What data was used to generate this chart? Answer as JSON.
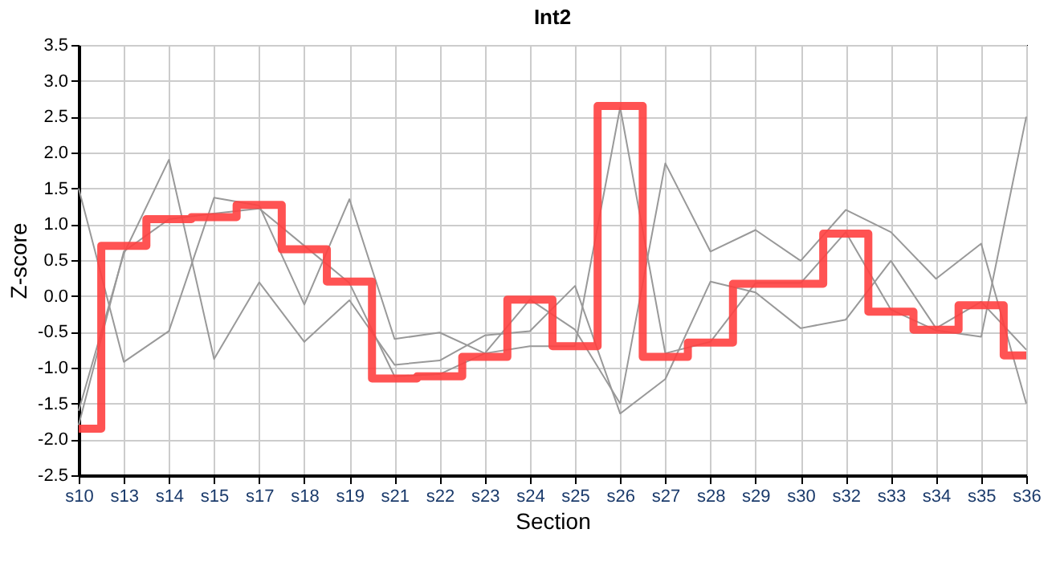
{
  "chart_data": {
    "type": "line",
    "title": "Int2",
    "xlabel": "Section",
    "ylabel": "Z-score",
    "categories": [
      "s10",
      "s13",
      "s14",
      "s15",
      "s17",
      "s18",
      "s19",
      "s21",
      "s22",
      "s23",
      "s24",
      "s25",
      "s26",
      "s27",
      "s28",
      "s29",
      "s30",
      "s32",
      "s33",
      "s34",
      "s35",
      "s36"
    ],
    "series": [
      {
        "type": "line",
        "color": "#999999",
        "values": [
          1.5,
          -0.92,
          -0.49,
          1.37,
          1.26,
          -0.12,
          1.35,
          -0.6,
          -0.51,
          -0.8,
          -0.05,
          -0.47,
          -1.5,
          1.85,
          0.62,
          0.92,
          0.49,
          1.2,
          0.89,
          0.24,
          0.73,
          -1.5
        ]
      },
      {
        "type": "line",
        "color": "#999999",
        "values": [
          -1.6,
          0.59,
          1.9,
          -0.88,
          0.19,
          -0.64,
          -0.06,
          -0.96,
          -0.9,
          -0.55,
          -0.49,
          0.14,
          -1.64,
          -1.16,
          0.2,
          0.05,
          -0.45,
          -0.33,
          0.49,
          -0.45,
          -0.08,
          -0.75
        ]
      },
      {
        "type": "line",
        "color": "#999999",
        "values": [
          -1.8,
          0.62,
          1.07,
          1.15,
          1.22,
          0.7,
          0.18,
          -1.12,
          -1.09,
          -0.8,
          -0.7,
          -0.7,
          2.63,
          -0.8,
          -0.64,
          0.18,
          0.18,
          0.89,
          -0.19,
          -0.48,
          -0.57,
          2.5
        ]
      },
      {
        "type": "step",
        "color": "#ff4040",
        "values": [
          -1.85,
          0.7,
          1.07,
          1.1,
          1.27,
          0.65,
          0.2,
          -1.15,
          -1.12,
          -0.85,
          -0.05,
          -0.7,
          2.65,
          -0.85,
          -0.65,
          0.17,
          0.17,
          0.87,
          -0.22,
          -0.47,
          -0.13,
          -0.83
        ]
      }
    ],
    "ylim": [
      -2.5,
      3.5
    ],
    "yticks": [
      {
        "value": -2.5,
        "label": "-2.5"
      },
      {
        "value": -2,
        "label": "-2.0"
      },
      {
        "value": -1.5,
        "label": "-1.5"
      },
      {
        "value": -1,
        "label": "-1.0"
      },
      {
        "value": -0.5,
        "label": "-0.5"
      },
      {
        "value": 0,
        "label": "0.0"
      },
      {
        "value": 0.5,
        "label": "0.5"
      },
      {
        "value": 1,
        "label": "1.0"
      },
      {
        "value": 1.5,
        "label": "1.5"
      },
      {
        "value": 2,
        "label": "2.0"
      },
      {
        "value": 2.5,
        "label": "2.5"
      },
      {
        "value": 3,
        "label": "3.0"
      },
      {
        "value": 3.5,
        "label": "3.5"
      }
    ],
    "grid": true,
    "legend": false
  }
}
